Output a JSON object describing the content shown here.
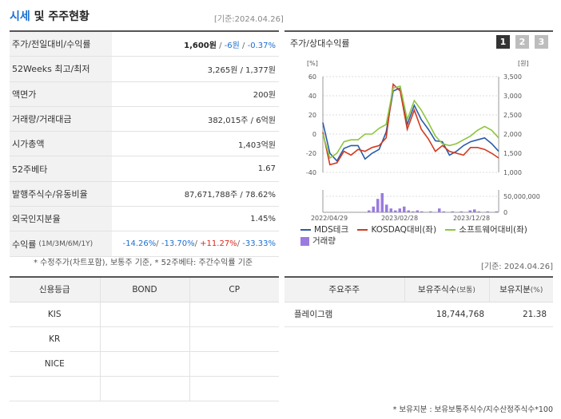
{
  "header": {
    "title_accent": "시세",
    "title_rest": "및 주주현황",
    "base_date": "[기준:2024.04.26]"
  },
  "summary": {
    "rows": [
      {
        "label": "주가/전일대비/수익률",
        "label_small": ""
      },
      {
        "label": "52Weeks 최고/최저",
        "label_small": "",
        "value": "3,265원 / 1,377원"
      },
      {
        "label": "액면가",
        "label_small": "",
        "value": "200원"
      },
      {
        "label": "거래량/거래대금",
        "label_small": "",
        "value": "382,015주 / 6억원"
      },
      {
        "label": "시가총액",
        "label_small": "",
        "value": "1,403억원"
      },
      {
        "label": "52주베타",
        "label_small": "",
        "value": "1.67"
      },
      {
        "label": "발행주식수/유동비율",
        "label_small": "",
        "value": "87,671,788주 / 78.62%"
      },
      {
        "label": "외국인지분율",
        "label_small": "",
        "value": "1.45%"
      },
      {
        "label": "수익률",
        "label_small": "(1M/3M/6M/1Y)"
      }
    ],
    "price": "1,600원",
    "sep1": " / ",
    "change": "-6원",
    "sep2": " / ",
    "change_pct": "-0.37%",
    "ret_1m": "-14.26%",
    "ret_3m": "-13.70%",
    "ret_6m": "+11.27%",
    "ret_1y": "-33.33%",
    "slash": "/ ",
    "note": "* 수정주가(차트포함), 보통주 기준, * 52주베타: 주간수익률 기준"
  },
  "chart_panel": {
    "title": "주가/상대수익률",
    "tabs": [
      "1",
      "2",
      "3"
    ],
    "active_tab": 0,
    "base_date": "[기준: 2024.04.26]"
  },
  "chart_data": {
    "type": "line",
    "left_axis": {
      "unit": "[%]",
      "ticks": [
        "60",
        "40",
        "20",
        "0",
        "-20",
        "-40"
      ],
      "range": [
        -40,
        60
      ]
    },
    "right_axis": {
      "unit": "[원]",
      "ticks": [
        "3,500",
        "3,000",
        "2,500",
        "2,000",
        "1,500",
        "1,000"
      ],
      "range": [
        1000,
        3500
      ]
    },
    "volume_axis": {
      "ticks": [
        "50,000,000",
        "0"
      ]
    },
    "x_labels": [
      "2022/04/29",
      "2023/02/28",
      "2023/12/28"
    ],
    "series": [
      {
        "name": "MDS테크",
        "color": "#2a5ca8",
        "values": [
          12,
          -20,
          -28,
          -15,
          -12,
          -12,
          -26,
          -20,
          -16,
          2,
          45,
          48,
          10,
          30,
          15,
          5,
          -7,
          -8,
          -22,
          -18,
          -12,
          -8,
          -6,
          -4,
          -10,
          -18
        ]
      },
      {
        "name": "KOSDAQ대비(좌)",
        "color": "#d33a1f",
        "values": [
          2,
          -32,
          -30,
          -18,
          -22,
          -16,
          -18,
          -14,
          -12,
          -4,
          52,
          45,
          5,
          25,
          5,
          -5,
          -18,
          -12,
          -18,
          -20,
          -22,
          -14,
          -14,
          -16,
          -20,
          -25
        ]
      },
      {
        "name": "소프트웨어대비(좌)",
        "color": "#8dc63f",
        "values": [
          0,
          -25,
          -20,
          -8,
          -6,
          -6,
          0,
          0,
          6,
          10,
          48,
          50,
          15,
          35,
          25,
          12,
          -2,
          -10,
          -12,
          -10,
          -6,
          -2,
          4,
          8,
          4,
          -4
        ]
      },
      {
        "name": "거래량",
        "color": "#9b7be0",
        "volume": [
          0,
          0,
          0,
          0,
          0,
          0,
          0,
          0,
          0,
          0,
          2,
          6,
          14,
          20,
          8,
          4,
          2,
          4,
          6,
          2,
          1,
          2,
          1,
          0,
          1,
          0,
          4,
          1,
          0,
          1,
          0,
          1,
          0,
          2,
          3,
          1,
          0,
          1,
          0,
          1
        ]
      }
    ]
  },
  "credit_table": {
    "headers": [
      "신용등급",
      "BOND",
      "CP"
    ],
    "rows": [
      [
        "KIS",
        "",
        ""
      ],
      [
        "KR",
        "",
        ""
      ],
      [
        "NICE",
        "",
        ""
      ],
      [
        "",
        "",
        ""
      ]
    ]
  },
  "holder_table": {
    "headers": [
      "주요주주",
      "보유주식수",
      "(보통)",
      "보유지분",
      "(%)"
    ],
    "rows": [
      {
        "name": "플레이그램",
        "shares": "18,744,768",
        "pct": "21.38"
      }
    ],
    "note": "* 보유지분 : 보유보통주식수/지수산정주식수*100"
  }
}
